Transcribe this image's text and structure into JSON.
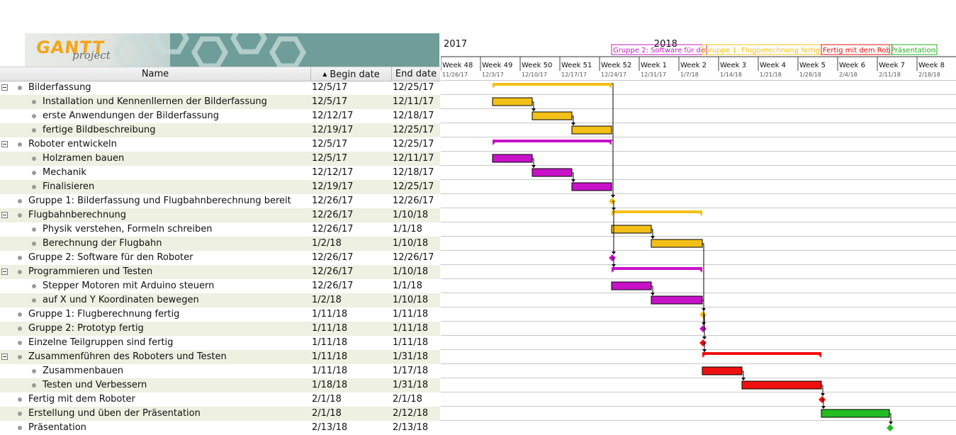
{
  "logo": {
    "text": "GANTT",
    "sub": "project"
  },
  "columns": {
    "name": "Name",
    "begin": "Begin date",
    "end": "End date",
    "sort_arrow": "▲"
  },
  "tasks": [
    {
      "name": "Bilderfassung",
      "begin": "12/5/17",
      "end": "12/25/17",
      "level": 0,
      "group": true
    },
    {
      "name": "Installation und Kennenllernen der Bilderfassung",
      "begin": "12/5/17",
      "end": "12/11/17",
      "level": 1
    },
    {
      "name": "erste Anwendungen der Bilderfassung",
      "begin": "12/12/17",
      "end": "12/18/17",
      "level": 1
    },
    {
      "name": "fertige Bildbeschreibung",
      "begin": "12/19/17",
      "end": "12/25/17",
      "level": 1
    },
    {
      "name": "Roboter entwickeln",
      "begin": "12/5/17",
      "end": "12/25/17",
      "level": 0,
      "group": true
    },
    {
      "name": "Holzramen bauen",
      "begin": "12/5/17",
      "end": "12/11/17",
      "level": 1
    },
    {
      "name": "Mechanik",
      "begin": "12/12/17",
      "end": "12/18/17",
      "level": 1
    },
    {
      "name": "Finalisieren",
      "begin": "12/19/17",
      "end": "12/25/17",
      "level": 1
    },
    {
      "name": "Gruppe 1: Bilderfassung und Flugbahnberechnung bereit",
      "begin": "12/26/17",
      "end": "12/26/17",
      "level": 0
    },
    {
      "name": "Flugbahnberechnung",
      "begin": "12/26/17",
      "end": "1/10/18",
      "level": 0,
      "group": true
    },
    {
      "name": "Physik verstehen, Formeln schreiben",
      "begin": "12/26/17",
      "end": "1/1/18",
      "level": 1
    },
    {
      "name": "Berechnung der Flugbahn",
      "begin": "1/2/18",
      "end": "1/10/18",
      "level": 1
    },
    {
      "name": "Gruppe 2: Software für den Roboter",
      "begin": "12/26/17",
      "end": "12/26/17",
      "level": 0
    },
    {
      "name": "Programmieren und Testen",
      "begin": "12/26/17",
      "end": "1/10/18",
      "level": 0,
      "group": true
    },
    {
      "name": "Stepper Motoren mit Arduino steuern",
      "begin": "12/26/17",
      "end": "1/1/18",
      "level": 1
    },
    {
      "name": "auf X und Y Koordinaten bewegen",
      "begin": "1/2/18",
      "end": "1/10/18",
      "level": 1
    },
    {
      "name": "Gruppe 1: Flugberechnung fertig",
      "begin": "1/11/18",
      "end": "1/11/18",
      "level": 0
    },
    {
      "name": "Gruppe 2: Prototyp fertig",
      "begin": "1/11/18",
      "end": "1/11/18",
      "level": 0
    },
    {
      "name": "Einzelne Teilgruppen sind fertig",
      "begin": "1/11/18",
      "end": "1/11/18",
      "level": 0
    },
    {
      "name": "Zusammenführen des Roboters und Testen",
      "begin": "1/11/18",
      "end": "1/31/18",
      "level": 0,
      "group": true
    },
    {
      "name": "Zusammenbauen",
      "begin": "1/11/18",
      "end": "1/17/18",
      "level": 1
    },
    {
      "name": "Testen und Verbessern",
      "begin": "1/18/18",
      "end": "1/31/18",
      "level": 1
    },
    {
      "name": "Fertig mit dem Roboter",
      "begin": "2/1/18",
      "end": "2/1/18",
      "level": 0
    },
    {
      "name": "Erstellung und üben der Präsentation",
      "begin": "2/1/18",
      "end": "2/12/18",
      "level": 0
    },
    {
      "name": "Präsentation",
      "begin": "2/13/18",
      "end": "2/13/18",
      "level": 0
    }
  ],
  "timeline": {
    "year_labels": [
      {
        "label": "2017",
        "week": 0
      },
      {
        "label": "2018",
        "week": 5.3
      }
    ],
    "weeks": [
      {
        "label": "Week 48",
        "date": "11/26/17"
      },
      {
        "label": "Week 49",
        "date": "12/3/17"
      },
      {
        "label": "Week 50",
        "date": "12/10/17"
      },
      {
        "label": "Week 51",
        "date": "12/17/17"
      },
      {
        "label": "Week 52",
        "date": "12/24/17"
      },
      {
        "label": "Week 1",
        "date": "12/31/17"
      },
      {
        "label": "Week 2",
        "date": "1/7/18"
      },
      {
        "label": "Week 3",
        "date": "1/14/18"
      },
      {
        "label": "Week 4",
        "date": "1/21/18"
      },
      {
        "label": "Week 5",
        "date": "1/28/18"
      },
      {
        "label": "Week 6",
        "date": "2/4/18"
      },
      {
        "label": "Week 7",
        "date": "2/11/18"
      },
      {
        "label": "Week 8",
        "date": "2/18/18"
      }
    ],
    "milestone_flags": [
      {
        "label": "Gruppe 2: Software für de",
        "color": "#c020c0",
        "day": 30
      },
      {
        "label": "Gruppe 1: Flugberechnung fertig",
        "color": "#f4c018",
        "day": 46
      },
      {
        "label": "Fertig mit dem Rob",
        "color": "#e01010",
        "day": 67
      },
      {
        "label": "Präsentation",
        "color": "#20b020",
        "day": 79
      }
    ]
  },
  "colors": {
    "yellow": "#f4c018",
    "magenta": "#c812c8",
    "red": "#f01010",
    "green": "#22bb22",
    "line": "#000000"
  },
  "bars": [
    {
      "row": 0,
      "start": 9,
      "end": 30,
      "color": "#f4c018",
      "kind": "summary"
    },
    {
      "row": 1,
      "start": 9,
      "end": 16,
      "color": "#f4c018",
      "kind": "task"
    },
    {
      "row": 2,
      "start": 16,
      "end": 23,
      "color": "#f4c018",
      "kind": "task"
    },
    {
      "row": 3,
      "start": 23,
      "end": 30,
      "color": "#f4c018",
      "kind": "task"
    },
    {
      "row": 4,
      "start": 9,
      "end": 30,
      "color": "#c812c8",
      "kind": "summary"
    },
    {
      "row": 5,
      "start": 9,
      "end": 16,
      "color": "#c812c8",
      "kind": "task"
    },
    {
      "row": 6,
      "start": 16,
      "end": 23,
      "color": "#c812c8",
      "kind": "task"
    },
    {
      "row": 7,
      "start": 23,
      "end": 30,
      "color": "#c812c8",
      "kind": "task"
    },
    {
      "row": 8,
      "start": 30,
      "end": 30,
      "color": "#f4c018",
      "kind": "milestone"
    },
    {
      "row": 9,
      "start": 30,
      "end": 46,
      "color": "#f4c018",
      "kind": "summary"
    },
    {
      "row": 10,
      "start": 30,
      "end": 37,
      "color": "#f4c018",
      "kind": "task"
    },
    {
      "row": 11,
      "start": 37,
      "end": 46,
      "color": "#f4c018",
      "kind": "task"
    },
    {
      "row": 12,
      "start": 30,
      "end": 30,
      "color": "#c812c8",
      "kind": "milestone"
    },
    {
      "row": 13,
      "start": 30,
      "end": 46,
      "color": "#c812c8",
      "kind": "summary"
    },
    {
      "row": 14,
      "start": 30,
      "end": 37,
      "color": "#c812c8",
      "kind": "task"
    },
    {
      "row": 15,
      "start": 37,
      "end": 46,
      "color": "#c812c8",
      "kind": "task"
    },
    {
      "row": 16,
      "start": 46,
      "end": 46,
      "color": "#f4c018",
      "kind": "milestone"
    },
    {
      "row": 17,
      "start": 46,
      "end": 46,
      "color": "#c812c8",
      "kind": "milestone"
    },
    {
      "row": 18,
      "start": 46,
      "end": 46,
      "color": "#f01010",
      "kind": "milestone"
    },
    {
      "row": 19,
      "start": 46,
      "end": 67,
      "color": "#f01010",
      "kind": "summary"
    },
    {
      "row": 20,
      "start": 46,
      "end": 53,
      "color": "#f01010",
      "kind": "task"
    },
    {
      "row": 21,
      "start": 53,
      "end": 67,
      "color": "#f01010",
      "kind": "task"
    },
    {
      "row": 22,
      "start": 67,
      "end": 67,
      "color": "#f01010",
      "kind": "milestone"
    },
    {
      "row": 23,
      "start": 67,
      "end": 79,
      "color": "#22bb22",
      "kind": "task"
    },
    {
      "row": 24,
      "start": 79,
      "end": 79,
      "color": "#22bb22",
      "kind": "milestone"
    }
  ],
  "deps": [
    [
      1,
      2
    ],
    [
      2,
      3
    ],
    [
      5,
      6
    ],
    [
      6,
      7
    ],
    [
      0,
      8
    ],
    [
      4,
      8
    ],
    [
      8,
      9
    ],
    [
      8,
      12
    ],
    [
      12,
      13
    ],
    [
      10,
      11
    ],
    [
      14,
      15
    ],
    [
      11,
      16
    ],
    [
      15,
      17
    ],
    [
      16,
      18
    ],
    [
      17,
      18
    ],
    [
      18,
      19
    ],
    [
      20,
      21
    ],
    [
      21,
      22
    ],
    [
      22,
      23
    ],
    [
      23,
      24
    ]
  ]
}
